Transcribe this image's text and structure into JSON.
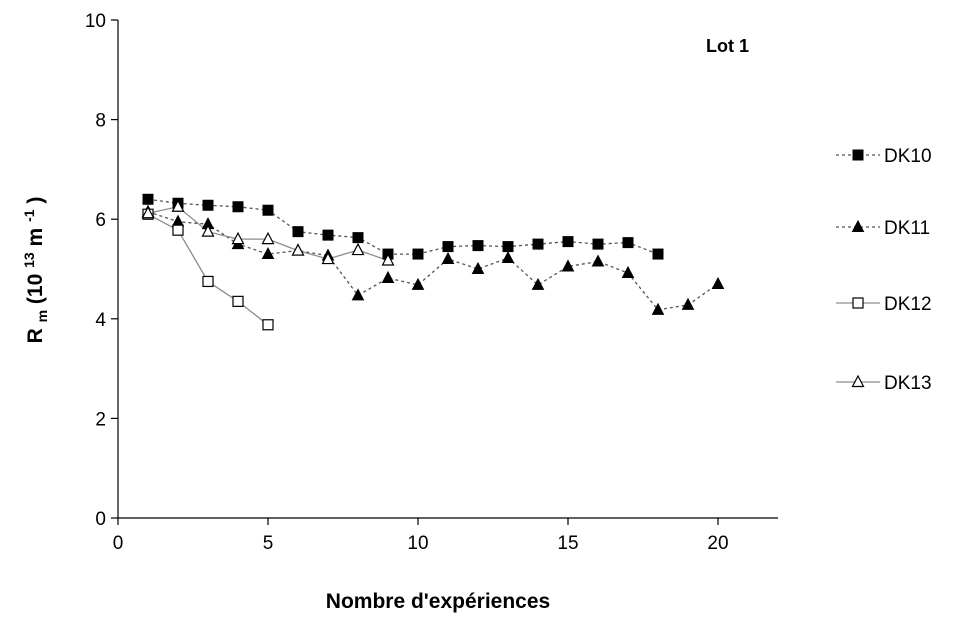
{
  "chart_data": {
    "type": "line",
    "title": "",
    "annotation": "Lot 1",
    "xlabel": "Nombre d'expériences",
    "ylabel": {
      "main": "R",
      "sub": "m",
      "open": " (10",
      "exp1": "13",
      "mid": " m",
      "exp2": "-1",
      "close": ")"
    },
    "xlim": [
      0,
      22
    ],
    "ylim": [
      0,
      10
    ],
    "x_ticks": [
      0,
      5,
      10,
      15,
      20
    ],
    "y_ticks": [
      0,
      2,
      4,
      6,
      8,
      10
    ],
    "x_tick_labels": [
      "0",
      "5",
      "10",
      "15",
      "20"
    ],
    "y_tick_labels": [
      "0",
      "2",
      "4",
      "6",
      "8",
      "10"
    ],
    "grid": false,
    "legend_position": "right",
    "series": [
      {
        "name": "DK10",
        "marker": "square-filled",
        "line": "dotted",
        "color": "#000000",
        "line_color": "#555555",
        "x": [
          1,
          2,
          3,
          4,
          5,
          6,
          7,
          8,
          9,
          10,
          11,
          12,
          13,
          14,
          15,
          16,
          17,
          18
        ],
        "y": [
          6.4,
          6.32,
          6.28,
          6.25,
          6.18,
          5.75,
          5.68,
          5.63,
          5.3,
          5.3,
          5.45,
          5.47,
          5.45,
          5.5,
          5.55,
          5.5,
          5.53,
          5.3
        ]
      },
      {
        "name": "DK11",
        "marker": "triangle-filled",
        "line": "dotted",
        "color": "#000000",
        "line_color": "#555555",
        "x": [
          1,
          2,
          3,
          4,
          5,
          6,
          7,
          8,
          9,
          10,
          11,
          12,
          13,
          14,
          15,
          16,
          17,
          18,
          19,
          20
        ],
        "y": [
          6.15,
          5.95,
          5.9,
          5.5,
          5.3,
          5.37,
          5.27,
          4.47,
          4.82,
          4.68,
          5.2,
          5.0,
          5.22,
          4.68,
          5.05,
          5.15,
          4.92,
          4.18,
          4.28,
          4.7
        ]
      },
      {
        "name": "DK12",
        "marker": "square-open",
        "line": "solid",
        "color": "#000000",
        "line_color": "#8c8c8c",
        "x": [
          1,
          2,
          3,
          4,
          5
        ],
        "y": [
          6.1,
          5.78,
          4.75,
          4.35,
          3.88
        ]
      },
      {
        "name": "DK13",
        "marker": "triangle-open",
        "line": "solid",
        "color": "#000000",
        "line_color": "#8c8c8c",
        "x": [
          1,
          2,
          3,
          4,
          5,
          6,
          7,
          8,
          9
        ],
        "y": [
          6.12,
          6.25,
          5.75,
          5.6,
          5.6,
          5.37,
          5.2,
          5.38,
          5.17
        ]
      }
    ]
  }
}
